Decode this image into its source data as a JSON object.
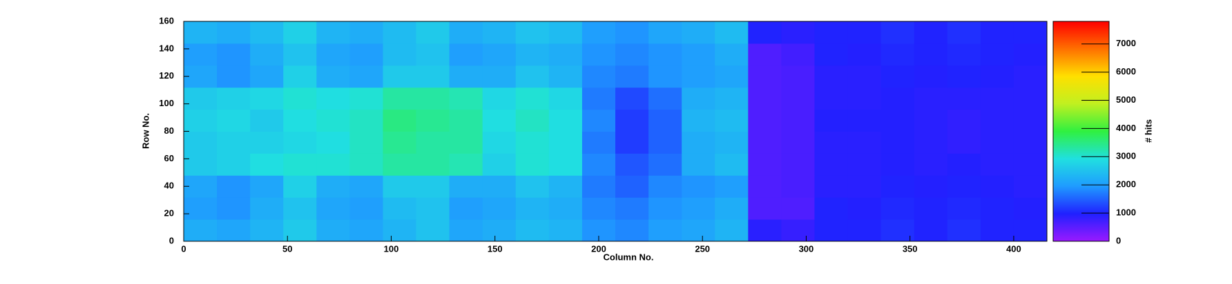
{
  "chart_data": {
    "type": "heatmap",
    "xlabel": "Column No.",
    "ylabel": "Row No.",
    "zlabel": "# hits",
    "xbins": [
      0,
      16,
      32,
      48,
      64,
      80,
      96,
      112,
      128,
      144,
      160,
      176,
      192,
      208,
      224,
      240,
      256,
      272,
      288,
      304,
      320,
      336,
      352,
      368,
      384,
      400,
      416
    ],
    "ybins": [
      0,
      16,
      32,
      48,
      64,
      80,
      96,
      112,
      128,
      144,
      160
    ],
    "values": [
      [
        2200,
        2100,
        2300,
        2600,
        2200,
        2100,
        2300,
        2500,
        2100,
        2200,
        2400,
        2300,
        1900,
        1800,
        2000,
        2100,
        2300,
        900,
        800,
        1000,
        1000,
        1100,
        1000,
        1100,
        1000,
        1000
      ],
      [
        2000,
        1900,
        2200,
        2500,
        2100,
        2000,
        2400,
        2500,
        2000,
        2100,
        2300,
        2200,
        1800,
        1700,
        1900,
        2000,
        2200,
        600,
        600,
        1000,
        950,
        1050,
        1000,
        1050,
        1000,
        950
      ],
      [
        2100,
        1900,
        2100,
        2700,
        2200,
        2100,
        2600,
        2600,
        2200,
        2200,
        2500,
        2300,
        1700,
        1500,
        1800,
        1900,
        2000,
        600,
        650,
        900,
        900,
        1000,
        950,
        1000,
        950,
        900
      ],
      [
        2600,
        2700,
        2900,
        3000,
        3000,
        3100,
        3300,
        3300,
        3200,
        2700,
        3000,
        2900,
        1800,
        1400,
        1600,
        2200,
        2400,
        600,
        650,
        900,
        900,
        950,
        900,
        950,
        900,
        900
      ],
      [
        2600,
        2700,
        2700,
        2800,
        2900,
        3100,
        3400,
        3300,
        3300,
        2800,
        3000,
        2900,
        1700,
        1200,
        1500,
        2200,
        2300,
        600,
        650,
        900,
        900,
        950,
        900,
        850,
        900,
        900
      ],
      [
        2700,
        2800,
        2600,
        2900,
        3000,
        3100,
        3500,
        3400,
        3300,
        2900,
        3100,
        2900,
        1800,
        1200,
        1500,
        2300,
        2400,
        600,
        650,
        950,
        950,
        950,
        900,
        850,
        900,
        900
      ],
      [
        2600,
        2700,
        2800,
        3000,
        2900,
        3000,
        3300,
        3300,
        3200,
        2800,
        3000,
        2800,
        1700,
        1300,
        1600,
        2200,
        2300,
        600,
        650,
        900,
        900,
        950,
        900,
        900,
        900,
        900
      ],
      [
        2100,
        1900,
        2100,
        2700,
        2200,
        2100,
        2600,
        2600,
        2200,
        2200,
        2500,
        2300,
        1800,
        1700,
        1900,
        2000,
        2100,
        600,
        650,
        900,
        900,
        1000,
        950,
        1000,
        950,
        900
      ],
      [
        2000,
        1900,
        2200,
        2500,
        2100,
        2000,
        2400,
        2500,
        2000,
        2100,
        2300,
        2200,
        1900,
        1800,
        1900,
        2000,
        2200,
        600,
        700,
        1000,
        950,
        1050,
        1000,
        1050,
        1000,
        950
      ],
      [
        2300,
        2200,
        2400,
        2700,
        2300,
        2200,
        2400,
        2600,
        2200,
        2300,
        2500,
        2400,
        2000,
        1900,
        2100,
        2200,
        2400,
        1000,
        900,
        1000,
        1000,
        1100,
        1000,
        1100,
        1000,
        1000
      ]
    ],
    "xlim": [
      0,
      416
    ],
    "ylim": [
      0,
      160
    ],
    "zlim": [
      0,
      7800
    ],
    "xticks": [
      0,
      50,
      100,
      150,
      200,
      250,
      300,
      350,
      400
    ],
    "yticks": [
      0,
      20,
      40,
      60,
      80,
      100,
      120,
      140,
      160
    ],
    "zticks": [
      0,
      1000,
      2000,
      3000,
      4000,
      5000,
      6000,
      7000
    ],
    "colormap": [
      "#9a1aff",
      "#2020ff",
      "#1f9bff",
      "#20e0e0",
      "#30f040",
      "#c0f020",
      "#ffe000",
      "#ff7000",
      "#ff0000"
    ]
  }
}
